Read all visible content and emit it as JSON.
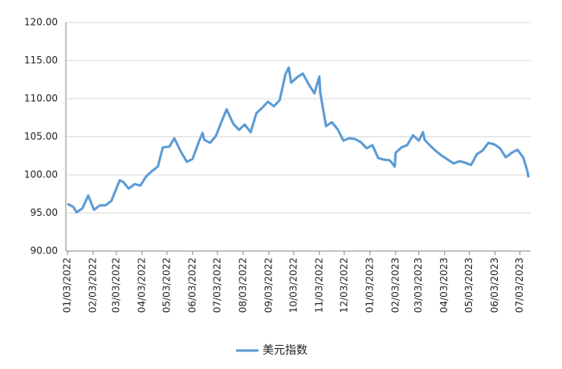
{
  "chart_data": {
    "type": "line",
    "x": [
      "2022-01-03",
      "2022-01-10",
      "2022-01-14",
      "2022-01-21",
      "2022-01-28",
      "2022-02-04",
      "2022-02-11",
      "2022-02-18",
      "2022-02-25",
      "2022-03-04",
      "2022-03-07",
      "2022-03-11",
      "2022-03-18",
      "2022-03-25",
      "2022-04-01",
      "2022-04-08",
      "2022-04-14",
      "2022-04-22",
      "2022-04-28",
      "2022-05-06",
      "2022-05-12",
      "2022-05-20",
      "2022-05-27",
      "2022-06-03",
      "2022-06-10",
      "2022-06-15",
      "2022-06-17",
      "2022-06-24",
      "2022-07-01",
      "2022-07-08",
      "2022-07-14",
      "2022-07-22",
      "2022-07-29",
      "2022-08-05",
      "2022-08-12",
      "2022-08-19",
      "2022-08-26",
      "2022-09-02",
      "2022-09-09",
      "2022-09-16",
      "2022-09-23",
      "2022-09-27",
      "2022-09-30",
      "2022-10-07",
      "2022-10-14",
      "2022-10-21",
      "2022-10-28",
      "2022-11-03",
      "2022-11-04",
      "2022-11-11",
      "2022-11-18",
      "2022-11-25",
      "2022-12-02",
      "2022-12-09",
      "2022-12-16",
      "2022-12-23",
      "2022-12-30",
      "2023-01-06",
      "2023-01-13",
      "2023-01-20",
      "2023-01-27",
      "2023-02-02",
      "2023-02-03",
      "2023-02-10",
      "2023-02-17",
      "2023-02-24",
      "2023-03-03",
      "2023-03-08",
      "2023-03-10",
      "2023-03-17",
      "2023-03-24",
      "2023-03-31",
      "2023-04-07",
      "2023-04-14",
      "2023-04-21",
      "2023-04-28",
      "2023-05-05",
      "2023-05-12",
      "2023-05-19",
      "2023-05-26",
      "2023-06-02",
      "2023-06-09",
      "2023-06-16",
      "2023-06-23",
      "2023-06-30",
      "2023-07-07",
      "2023-07-12",
      "2023-07-13",
      "2023-07-14"
    ],
    "series": [
      {
        "name": "美元指数",
        "color": "#5b9bd5",
        "values": [
          96.2,
          95.8,
          95.1,
          95.6,
          97.3,
          95.4,
          96.0,
          96.0,
          96.6,
          98.5,
          99.3,
          99.1,
          98.2,
          98.8,
          98.6,
          99.8,
          100.4,
          101.1,
          103.6,
          103.7,
          104.8,
          103.0,
          101.7,
          102.1,
          104.2,
          105.5,
          104.6,
          104.2,
          105.1,
          107.0,
          108.6,
          106.7,
          105.9,
          106.6,
          105.6,
          108.1,
          108.8,
          109.6,
          109.0,
          109.8,
          113.2,
          114.1,
          112.1,
          112.8,
          113.3,
          111.9,
          110.7,
          112.9,
          110.8,
          106.4,
          106.9,
          106.0,
          104.5,
          104.8,
          104.7,
          104.3,
          103.5,
          103.9,
          102.2,
          102.0,
          101.9,
          101.1,
          102.9,
          103.6,
          103.9,
          105.2,
          104.5,
          105.6,
          104.6,
          103.8,
          103.1,
          102.5,
          102.0,
          101.5,
          101.8,
          101.6,
          101.3,
          102.7,
          103.2,
          104.2,
          104.0,
          103.5,
          102.3,
          102.9,
          103.3,
          102.3,
          100.5,
          99.8,
          99.9
        ]
      }
    ],
    "xlim": [
      "2022-01-01",
      "2023-07-16"
    ],
    "xticks": [
      {
        "value": "2022-01-03",
        "label": "01/03/2022"
      },
      {
        "value": "2022-02-03",
        "label": "02/03/2022"
      },
      {
        "value": "2022-03-03",
        "label": "03/03/2022"
      },
      {
        "value": "2022-04-03",
        "label": "04/03/2022"
      },
      {
        "value": "2022-05-03",
        "label": "05/03/2022"
      },
      {
        "value": "2022-06-03",
        "label": "06/03/2022"
      },
      {
        "value": "2022-07-03",
        "label": "07/03/2022"
      },
      {
        "value": "2022-08-03",
        "label": "08/03/2022"
      },
      {
        "value": "2022-09-03",
        "label": "09/03/2022"
      },
      {
        "value": "2022-10-03",
        "label": "10/03/2022"
      },
      {
        "value": "2022-11-03",
        "label": "11/03/2022"
      },
      {
        "value": "2022-12-03",
        "label": "12/03/2022"
      },
      {
        "value": "2023-01-03",
        "label": "01/03/2023"
      },
      {
        "value": "2023-02-03",
        "label": "02/03/2023"
      },
      {
        "value": "2023-03-03",
        "label": "03/03/2023"
      },
      {
        "value": "2023-04-03",
        "label": "04/03/2023"
      },
      {
        "value": "2023-05-03",
        "label": "05/03/2023"
      },
      {
        "value": "2023-06-03",
        "label": "06/03/2023"
      },
      {
        "value": "2023-07-03",
        "label": "07/03/2023"
      }
    ],
    "ylim": [
      90,
      120
    ],
    "yticks": [
      {
        "value": 90,
        "label": "90.00"
      },
      {
        "value": 95,
        "label": "95.00"
      },
      {
        "value": 100,
        "label": "100.00"
      },
      {
        "value": 105,
        "label": "105.00"
      },
      {
        "value": 110,
        "label": "110.00"
      },
      {
        "value": 115,
        "label": "115.00"
      },
      {
        "value": 120,
        "label": "120.00"
      }
    ],
    "grid": true,
    "legend": "bottom"
  }
}
